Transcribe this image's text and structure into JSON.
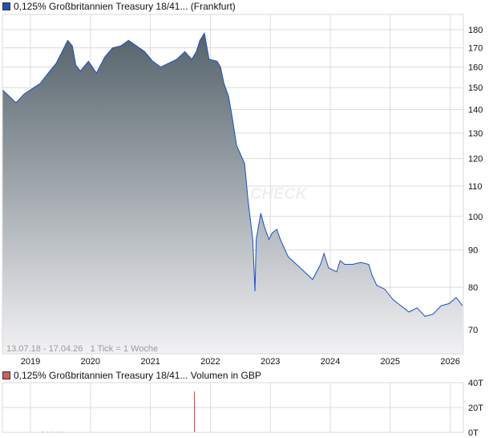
{
  "price_legend": {
    "label": "0,125% Großbritannien Treasury 18/41... (Frankfurt)",
    "color": "#1f4fbf"
  },
  "volume_legend": {
    "label": "0,125% Großbritannien Treasury 18/41... Volumen in GBP",
    "color": "#d06060"
  },
  "info_text": "13.07.18 - 17.04.26   1 Tick = 1 Woche",
  "watermark": "CHECK",
  "chart_data": [
    {
      "type": "area",
      "scale": "log",
      "ylim": [
        64,
        190
      ],
      "yticks": [
        70,
        80,
        90,
        100,
        110,
        120,
        130,
        140,
        150,
        160,
        170,
        180
      ],
      "xticks": [
        "2019",
        "2020",
        "2021",
        "2022",
        "2023",
        "2024",
        "2025",
        "2026"
      ],
      "xrange": [
        "2018-07-13",
        "2026-04-17"
      ],
      "grid": true,
      "line_color": "#1a4fc4",
      "fill_top_color": "#55636b",
      "fill_bottom_color": "#f2f2f4",
      "points": [
        [
          "2018-07-13",
          149
        ],
        [
          "2018-10-05",
          143
        ],
        [
          "2018-11-23",
          147
        ],
        [
          "2019-03-01",
          152
        ],
        [
          "2019-04-19",
          157
        ],
        [
          "2019-06-07",
          162
        ],
        [
          "2019-08-16",
          174
        ],
        [
          "2019-09-13",
          171
        ],
        [
          "2019-10-04",
          161
        ],
        [
          "2019-11-01",
          158
        ],
        [
          "2019-12-20",
          163
        ],
        [
          "2020-02-07",
          157
        ],
        [
          "2020-03-27",
          165
        ],
        [
          "2020-05-15",
          170
        ],
        [
          "2020-07-03",
          171
        ],
        [
          "2020-08-21",
          174
        ],
        [
          "2020-10-09",
          171
        ],
        [
          "2020-11-27",
          168
        ],
        [
          "2021-01-15",
          163
        ],
        [
          "2021-03-05",
          160
        ],
        [
          "2021-04-23",
          162
        ],
        [
          "2021-06-11",
          164
        ],
        [
          "2021-07-30",
          168
        ],
        [
          "2021-09-10",
          164
        ],
        [
          "2021-10-08",
          168
        ],
        [
          "2021-10-29",
          174
        ],
        [
          "2021-11-26",
          178
        ],
        [
          "2021-12-24",
          164
        ],
        [
          "2022-02-11",
          163
        ],
        [
          "2022-03-04",
          160
        ],
        [
          "2022-03-25",
          152
        ],
        [
          "2022-04-22",
          146
        ],
        [
          "2022-05-13",
          137
        ],
        [
          "2022-06-10",
          125
        ],
        [
          "2022-07-01",
          122
        ],
        [
          "2022-07-29",
          118
        ],
        [
          "2022-08-19",
          105
        ],
        [
          "2022-09-16",
          93
        ],
        [
          "2022-09-30",
          79
        ],
        [
          "2022-10-07",
          93
        ],
        [
          "2022-11-04",
          101
        ],
        [
          "2022-11-25",
          97
        ],
        [
          "2022-12-23",
          93
        ],
        [
          "2023-01-13",
          95
        ],
        [
          "2023-02-10",
          96
        ],
        [
          "2023-03-03",
          93
        ],
        [
          "2023-04-21",
          88
        ],
        [
          "2023-06-09",
          86
        ],
        [
          "2023-07-28",
          84
        ],
        [
          "2023-09-15",
          82
        ],
        [
          "2023-11-03",
          86
        ],
        [
          "2023-11-24",
          89
        ],
        [
          "2023-12-22",
          85
        ],
        [
          "2024-02-09",
          84
        ],
        [
          "2024-03-01",
          87
        ],
        [
          "2024-03-29",
          86
        ],
        [
          "2024-05-17",
          86
        ],
        [
          "2024-07-05",
          86.5
        ],
        [
          "2024-08-23",
          86
        ],
        [
          "2024-09-13",
          83
        ],
        [
          "2024-10-11",
          80.5
        ],
        [
          "2024-11-29",
          79.5
        ],
        [
          "2025-01-17",
          77
        ],
        [
          "2025-03-07",
          75.5
        ],
        [
          "2025-04-25",
          74
        ],
        [
          "2025-06-13",
          75
        ],
        [
          "2025-08-01",
          73
        ],
        [
          "2025-09-19",
          73.5
        ],
        [
          "2025-11-07",
          75.5
        ],
        [
          "2025-12-26",
          76
        ],
        [
          "2026-02-06",
          77.5
        ],
        [
          "2026-04-17",
          75.5
        ]
      ]
    },
    {
      "type": "bar",
      "ylim": [
        0,
        40
      ],
      "yticks": [
        "0T",
        "20T",
        "40T"
      ],
      "ytick_values": [
        0,
        20,
        40
      ],
      "grid": true,
      "bar_color": "#c04848",
      "bars": [
        [
          "2019-03-15",
          0.3,
          "#3a3"
        ],
        [
          "2019-04-12",
          0.4,
          "#c04848"
        ],
        [
          "2019-05-10",
          0.3,
          "#3a3"
        ],
        [
          "2019-06-14",
          0.5,
          "#c04848"
        ],
        [
          "2019-07-12",
          0.4,
          "#3a3"
        ],
        [
          "2021-09-24",
          33,
          "#c04848"
        ]
      ]
    }
  ]
}
